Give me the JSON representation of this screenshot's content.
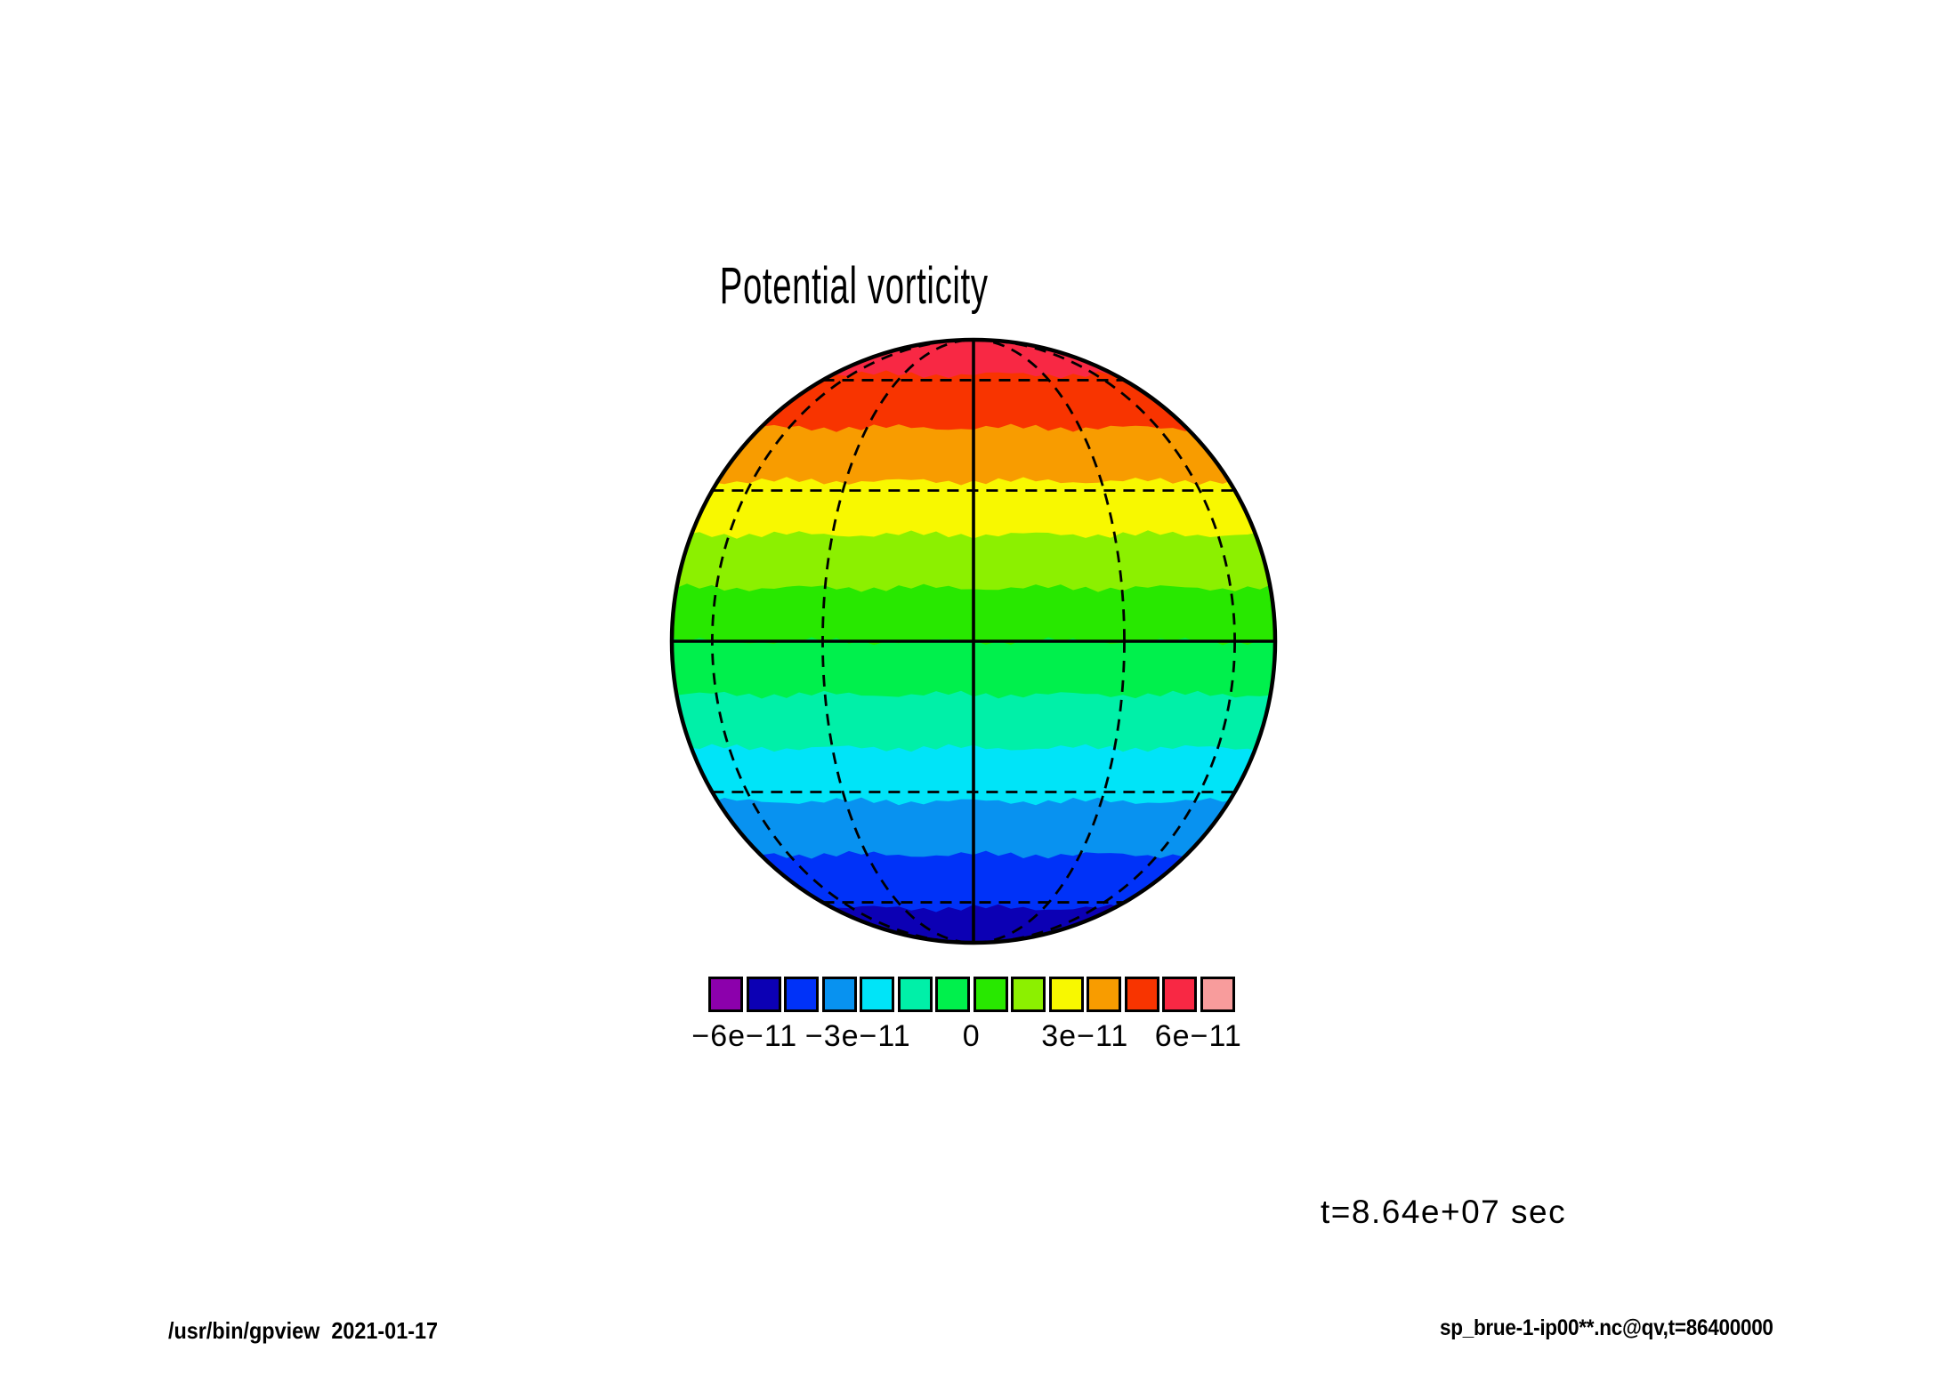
{
  "page": {
    "background": "#ffffff"
  },
  "title": "Potential vorticity",
  "time_label": "t=8.64e+07 sec",
  "footer": {
    "left": "/usr/bin/gpview  2021-01-17",
    "right": "sp_brue-1-ip00**.nc@qv,t=86400000"
  },
  "chart_data": {
    "type": "heatmap",
    "subtype": "filled-contour-map-orthographic-globe",
    "title": "Potential vorticity",
    "variable": "qv",
    "time_label": "t=8.64e+07 sec",
    "time_value_sec": 86400000,
    "contour_interval": 1e-11,
    "value_range_colorbar": [
      -7e-11,
      7e-11
    ],
    "legend_position": "below",
    "grid": "graticule 30 degree, dashed; equator, central meridian and limb solid",
    "colorbar": {
      "colors": [
        "#8C00AC",
        "#0C00B4",
        "#0032F8",
        "#0892F0",
        "#00E4F8",
        "#00F0A8",
        "#00F04C",
        "#28E800",
        "#8CF000",
        "#F8F800",
        "#F89C00",
        "#F83400",
        "#F82844",
        "#F89C9C"
      ],
      "cell_values": [
        [
          -7,
          -6
        ],
        [
          -6,
          -5
        ],
        [
          -5,
          -4
        ],
        [
          -4,
          -3
        ],
        [
          -3,
          -2
        ],
        [
          -2,
          -1
        ],
        [
          -1,
          0
        ],
        [
          0,
          1
        ],
        [
          1,
          2
        ],
        [
          2,
          3
        ],
        [
          3,
          4
        ],
        [
          4,
          5
        ],
        [
          5,
          6
        ],
        [
          6,
          7
        ]
      ],
      "cell_values_unit": "1e-11",
      "tick_labels": [
        "−6e−11",
        "−3e−11",
        "0",
        "3e−11",
        "6e−11"
      ],
      "tick_values": [
        -6e-11,
        -3e-11,
        0,
        3e-11,
        6e-11
      ],
      "tick_cell_boundaries": [
        1,
        4,
        7,
        10,
        13
      ]
    },
    "globe_bands": [
      {
        "value_min_1e11": 5,
        "value_max_1e11": 6,
        "color": "#F82844"
      },
      {
        "value_min_1e11": 4,
        "value_max_1e11": 5,
        "color": "#F83400"
      },
      {
        "value_min_1e11": 3,
        "value_max_1e11": 4,
        "color": "#F89C00"
      },
      {
        "value_min_1e11": 2,
        "value_max_1e11": 3,
        "color": "#F8F800"
      },
      {
        "value_min_1e11": 1,
        "value_max_1e11": 2,
        "color": "#8CF000"
      },
      {
        "value_min_1e11": 0,
        "value_max_1e11": 1,
        "color": "#28E800"
      },
      {
        "value_min_1e11": -1,
        "value_max_1e11": 0,
        "color": "#00F04C"
      },
      {
        "value_min_1e11": -2,
        "value_max_1e11": -1,
        "color": "#00F0A8"
      },
      {
        "value_min_1e11": -3,
        "value_max_1e11": -2,
        "color": "#00E4F8"
      },
      {
        "value_min_1e11": -4,
        "value_max_1e11": -3,
        "color": "#0892F0"
      },
      {
        "value_min_1e11": -5,
        "value_max_1e11": -4,
        "color": "#0032F8"
      },
      {
        "value_min_1e11": -6,
        "value_max_1e11": -5,
        "color": "#0C00B4"
      }
    ],
    "graticule": {
      "parallels_deg": [
        -60,
        -30,
        0,
        30,
        60
      ],
      "meridians_deg": [
        -60,
        -30,
        0,
        30,
        60
      ],
      "dashed": true,
      "solid_lines": [
        "equator",
        "central-meridian",
        "limb"
      ]
    }
  }
}
